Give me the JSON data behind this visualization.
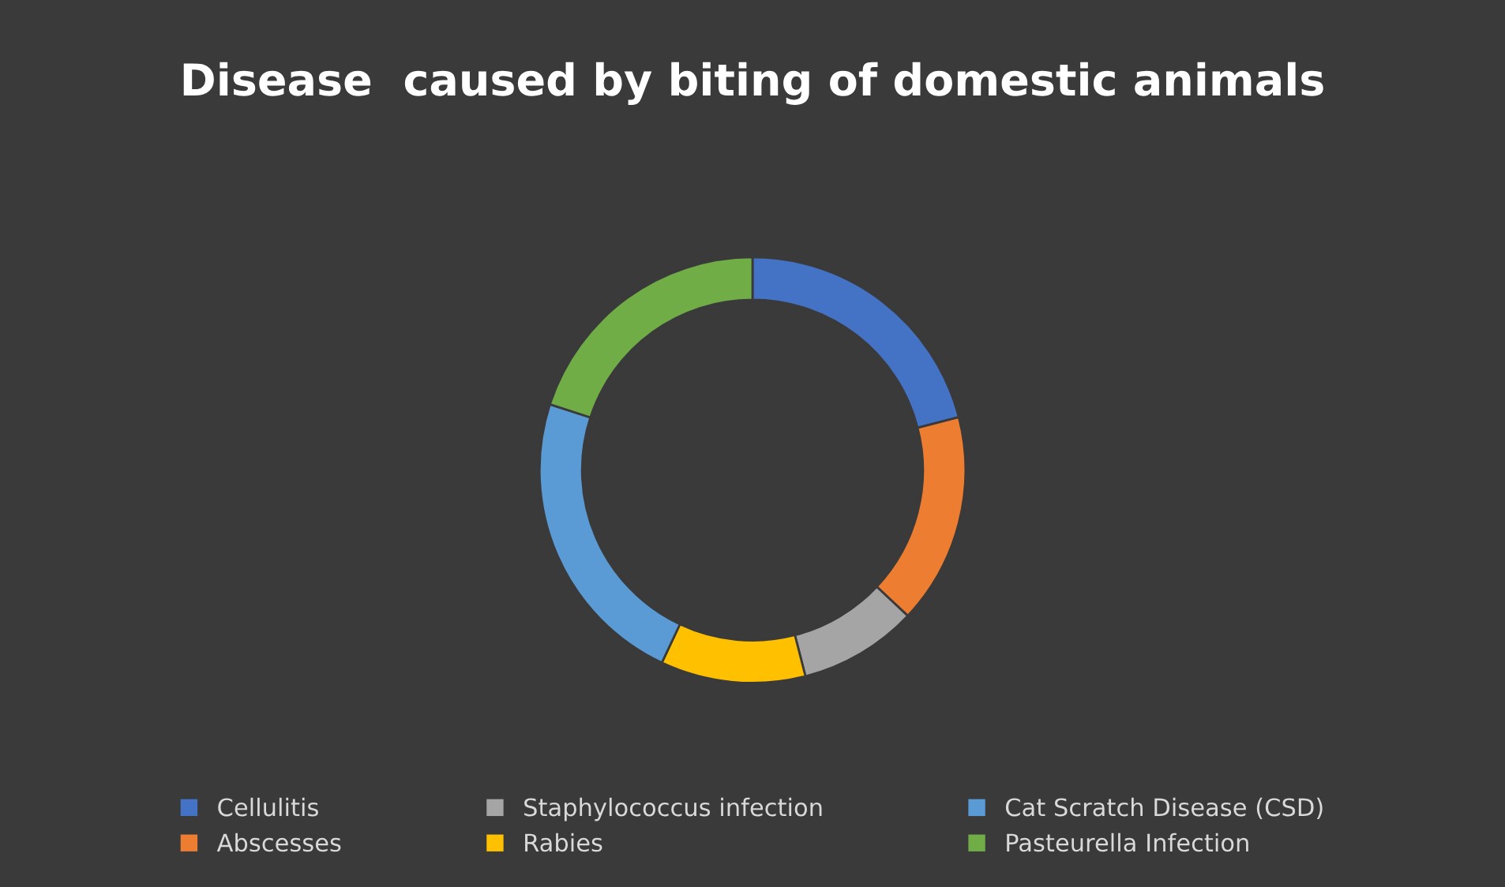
{
  "chart_data": {
    "type": "donut",
    "title": "Disease  caused by biting of domestic animals",
    "categories": [
      "Cellulitis",
      "Abscesses",
      "Staphylococcus infection",
      "Rabies",
      "Cat Scratch Disease (CSD)",
      "Pasteurella Infection"
    ],
    "values": [
      21,
      16,
      9,
      11,
      23,
      20
    ],
    "colors": [
      "#4472c4",
      "#ed7d31",
      "#a5a5a5",
      "#ffc000",
      "#5b9bd5",
      "#70ad47"
    ],
    "legend": "bottom"
  }
}
